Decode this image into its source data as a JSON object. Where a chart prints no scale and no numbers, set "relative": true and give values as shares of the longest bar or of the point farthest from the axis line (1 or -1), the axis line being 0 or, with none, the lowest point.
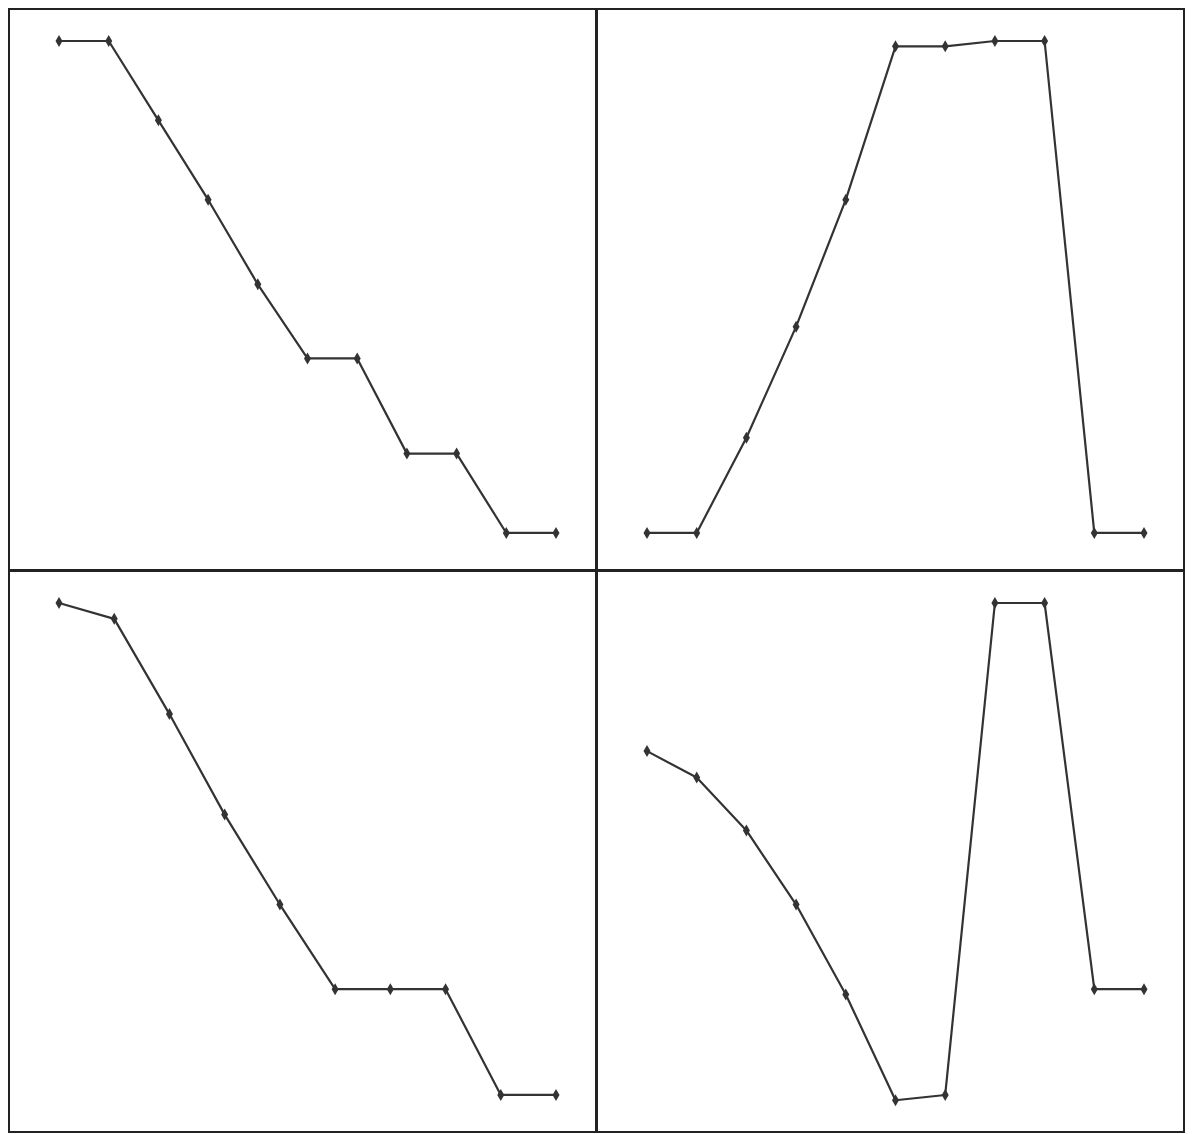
{
  "chart_data": [
    {
      "type": "line",
      "relative": true,
      "marker": "diamond",
      "categories": [
        null,
        null,
        null,
        null,
        null,
        null,
        null,
        null,
        null,
        null,
        null
      ],
      "series": [
        {
          "color": "#333333",
          "values": [
            1,
            1,
            0.85,
            0.7,
            0.54,
            0.4,
            0.4,
            0.22,
            0.22,
            0.07,
            0.07
          ]
        }
      ]
    },
    {
      "type": "line",
      "relative": true,
      "marker": "diamond",
      "categories": [
        null,
        null,
        null,
        null,
        null,
        null,
        null,
        null,
        null,
        null,
        null
      ],
      "series": [
        {
          "color": "#333333",
          "values": [
            0.07,
            0.07,
            0.25,
            0.46,
            0.7,
            0.99,
            0.99,
            1,
            1,
            0.07,
            0.07
          ]
        }
      ]
    },
    {
      "type": "line",
      "relative": true,
      "marker": "diamond",
      "categories": [
        null,
        null,
        null,
        null,
        null,
        null,
        null,
        null,
        null,
        null
      ],
      "series": [
        {
          "color": "#333333",
          "values": [
            1,
            0.97,
            0.79,
            0.6,
            0.43,
            0.27,
            0.27,
            0.27,
            0.07,
            0.07
          ]
        }
      ]
    },
    {
      "type": "line",
      "relative": true,
      "marker": "diamond",
      "categories": [
        null,
        null,
        null,
        null,
        null,
        null,
        null,
        null,
        null,
        null,
        null
      ],
      "series": [
        {
          "color": "#333333",
          "values": [
            0.72,
            0.67,
            0.57,
            0.43,
            0.26,
            0.06,
            0.07,
            1,
            1,
            0.27,
            0.27
          ]
        }
      ]
    }
  ]
}
